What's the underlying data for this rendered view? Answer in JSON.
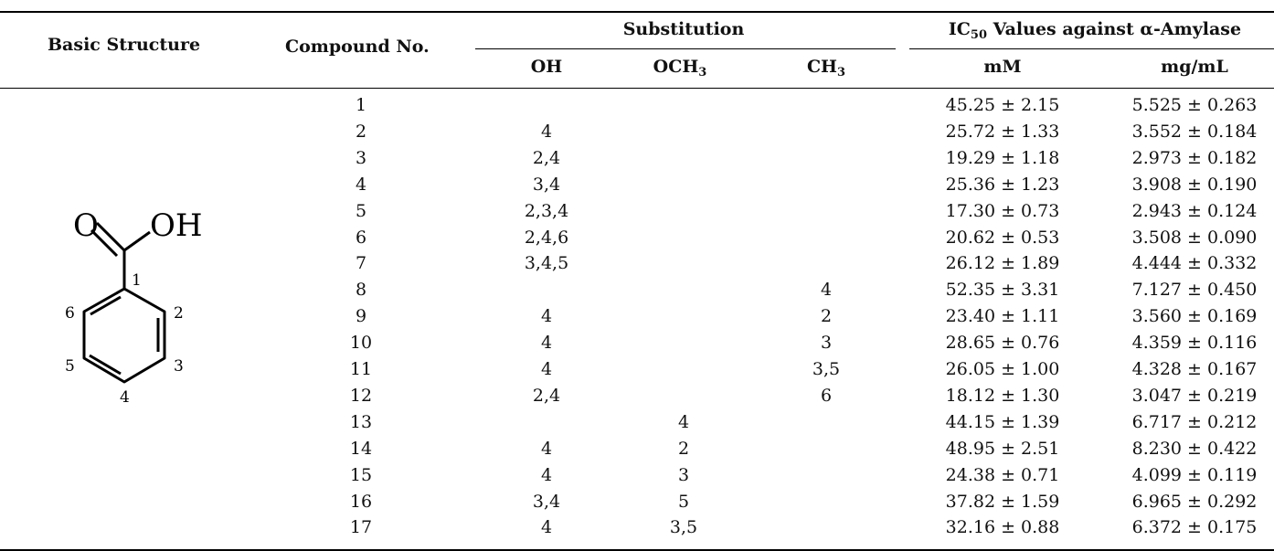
{
  "header": {
    "basic_structure": "Basic Structure",
    "compound_no": "Compound No.",
    "substitution": "Substitution",
    "ic50_prefix": "IC",
    "ic50_sub": "50",
    "ic50_suffix": " Values against α-Amylase",
    "oh": "OH",
    "och3_prefix": "OCH",
    "och3_sub": "3",
    "ch3_prefix": "CH",
    "ch3_sub": "3",
    "mm": "mM",
    "mgml": "mg/mL"
  },
  "structure": {
    "carbonyl_o": "O",
    "hydroxyl": "OH",
    "positions": [
      "1",
      "2",
      "3",
      "4",
      "5",
      "6"
    ]
  },
  "rows": [
    {
      "no": "1",
      "oh": "",
      "och3": "",
      "ch3": "",
      "mm": "45.25 ± 2.15",
      "mg": "5.525 ± 0.263"
    },
    {
      "no": "2",
      "oh": "4",
      "och3": "",
      "ch3": "",
      "mm": "25.72 ± 1.33",
      "mg": "3.552 ± 0.184"
    },
    {
      "no": "3",
      "oh": "2,4",
      "och3": "",
      "ch3": "",
      "mm": "19.29 ± 1.18",
      "mg": "2.973 ± 0.182"
    },
    {
      "no": "4",
      "oh": "3,4",
      "och3": "",
      "ch3": "",
      "mm": "25.36 ± 1.23",
      "mg": "3.908 ± 0.190"
    },
    {
      "no": "5",
      "oh": "2,3,4",
      "och3": "",
      "ch3": "",
      "mm": "17.30 ± 0.73",
      "mg": "2.943 ± 0.124"
    },
    {
      "no": "6",
      "oh": "2,4,6",
      "och3": "",
      "ch3": "",
      "mm": "20.62 ± 0.53",
      "mg": "3.508 ± 0.090"
    },
    {
      "no": "7",
      "oh": "3,4,5",
      "och3": "",
      "ch3": "",
      "mm": "26.12 ± 1.89",
      "mg": "4.444 ± 0.332"
    },
    {
      "no": "8",
      "oh": "",
      "och3": "",
      "ch3": "4",
      "mm": "52.35 ± 3.31",
      "mg": "7.127 ± 0.450"
    },
    {
      "no": "9",
      "oh": "4",
      "och3": "",
      "ch3": "2",
      "mm": "23.40 ± 1.11",
      "mg": "3.560 ± 0.169"
    },
    {
      "no": "10",
      "oh": "4",
      "och3": "",
      "ch3": "3",
      "mm": "28.65 ± 0.76",
      "mg": "4.359 ± 0.116"
    },
    {
      "no": "11",
      "oh": "4",
      "och3": "",
      "ch3": "3,5",
      "mm": "26.05 ± 1.00",
      "mg": "4.328 ± 0.167"
    },
    {
      "no": "12",
      "oh": "2,4",
      "och3": "",
      "ch3": "6",
      "mm": "18.12 ± 1.30",
      "mg": "3.047 ± 0.219"
    },
    {
      "no": "13",
      "oh": "",
      "och3": "4",
      "ch3": "",
      "mm": "44.15 ± 1.39",
      "mg": "6.717 ± 0.212"
    },
    {
      "no": "14",
      "oh": "4",
      "och3": "2",
      "ch3": "",
      "mm": "48.95 ± 2.51",
      "mg": "8.230 ± 0.422"
    },
    {
      "no": "15",
      "oh": "4",
      "och3": "3",
      "ch3": "",
      "mm": "24.38 ± 0.71",
      "mg": "4.099 ± 0.119"
    },
    {
      "no": "16",
      "oh": "3,4",
      "och3": "5",
      "ch3": "",
      "mm": "37.82 ± 1.59",
      "mg": "6.965 ± 0.292"
    },
    {
      "no": "17",
      "oh": "4",
      "och3": "3,5",
      "ch3": "",
      "mm": "32.16 ± 0.88",
      "mg": "6.372 ± 0.175"
    }
  ]
}
